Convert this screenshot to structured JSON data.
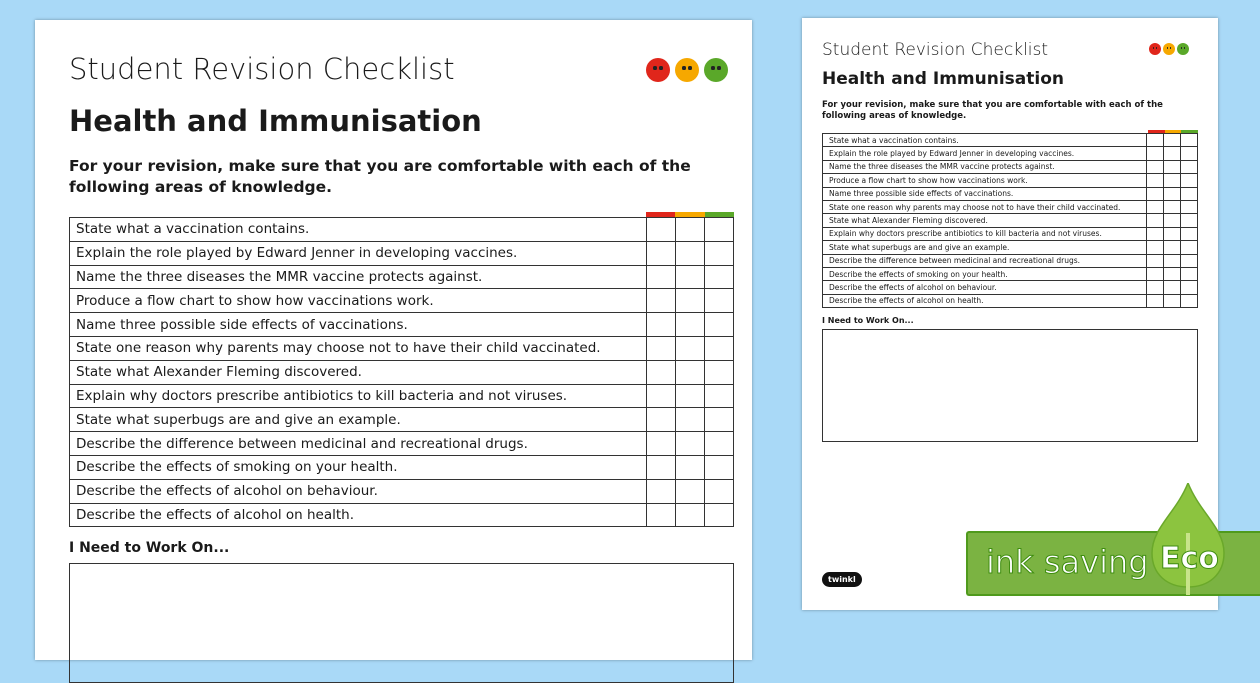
{
  "title": "Student Revision Checklist",
  "subtitle": "Health and Immunisation",
  "intro": "For your revision, make sure that you are comfortable with each of the following areas of knowledge.",
  "items": [
    "State what a vaccination contains.",
    "Explain the role played by Edward Jenner in developing vaccines.",
    "Name the three diseases the MMR vaccine protects against.",
    "Produce a flow chart to show how vaccinations work.",
    "Name three possible side effects of vaccinations.",
    "State one reason why parents may choose not to have their child vaccinated.",
    "State what Alexander Fleming discovered.",
    "Explain why doctors prescribe antibiotics to kill bacteria and not viruses.",
    "State what superbugs are and give an example.",
    "Describe the difference between medicinal and recreational drugs.",
    "Describe the effects of smoking on your health.",
    "Describe the effects of alcohol on behaviour.",
    "Describe the effects of alcohol on health."
  ],
  "work_label": "I Need to Work On...",
  "rating_colors": {
    "red": "#e0261b",
    "amber": "#f6a800",
    "green": "#5aa829"
  },
  "faces": [
    "sad-face-icon",
    "neutral-face-icon",
    "happy-face-icon"
  ],
  "badge": {
    "text": "ink saving",
    "eco": "Eco"
  },
  "logo": "twinkl"
}
